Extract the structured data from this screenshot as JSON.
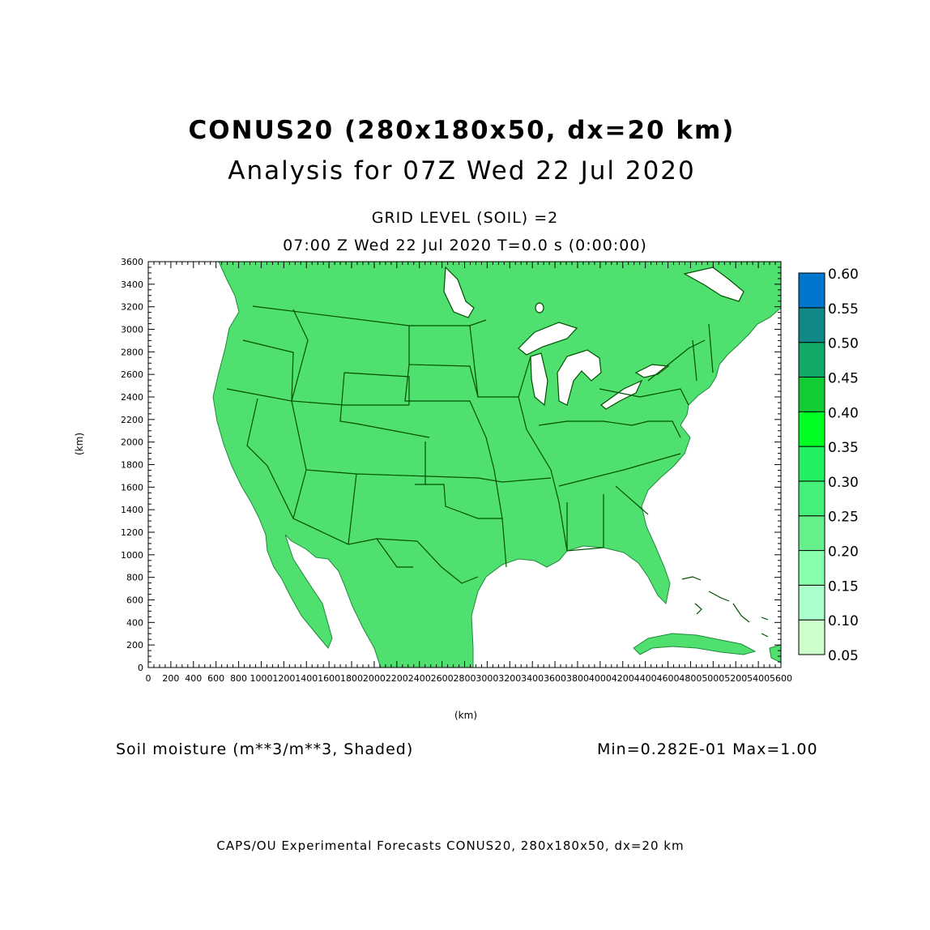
{
  "title": {
    "line1": "CONUS20 (280x180x50, dx=20 km)",
    "line2": "Analysis for 07Z Wed 22 Jul 2020"
  },
  "subtitle": {
    "level": "GRID LEVEL (SOIL) =2",
    "time": "07:00 Z Wed 22 Jul 2020   T=0.0 s (0:00:00)"
  },
  "field_label": "Soil moisture (m**3/m**3, Shaded)",
  "min_max": "Min=0.282E-01 Max=1.00",
  "footer": "CAPS/OU Experimental Forecasts  CONUS20, 280x180x50, dx=20 km",
  "map": {
    "x_label": "(km)",
    "y_label": "(km)",
    "x_range_km": [
      0,
      5600
    ],
    "y_range_km": [
      0,
      3600
    ],
    "x_ticks": [
      "0",
      "200",
      "400",
      "600",
      "800",
      "1000",
      "1200",
      "1400",
      "1600",
      "1800",
      "2000",
      "2200",
      "2400",
      "2600",
      "2800",
      "3000",
      "3200",
      "3400",
      "3600",
      "3800",
      "4000",
      "4200",
      "4400",
      "4600",
      "4800",
      "5000",
      "5200",
      "5400",
      "5600"
    ],
    "y_ticks": [
      "0",
      "200",
      "400",
      "600",
      "800",
      "1000",
      "1200",
      "1400",
      "1600",
      "1800",
      "2000",
      "2200",
      "2400",
      "2600",
      "2800",
      "3000",
      "3200",
      "3400",
      "3600"
    ],
    "land_color": "#50e070",
    "boundary_color": "#005000"
  },
  "colorbar": {
    "levels": [
      "0.05",
      "0.10",
      "0.15",
      "0.20",
      "0.25",
      "0.30",
      "0.35",
      "0.40",
      "0.45",
      "0.50",
      "0.55",
      "0.60"
    ],
    "colors": [
      "#ccffcc",
      "#aaffcc",
      "#88ffaa",
      "#66f08c",
      "#44f07a",
      "#22f060",
      "#00ff22",
      "#11cc33",
      "#11aa66",
      "#118888",
      "#0077cc"
    ]
  }
}
